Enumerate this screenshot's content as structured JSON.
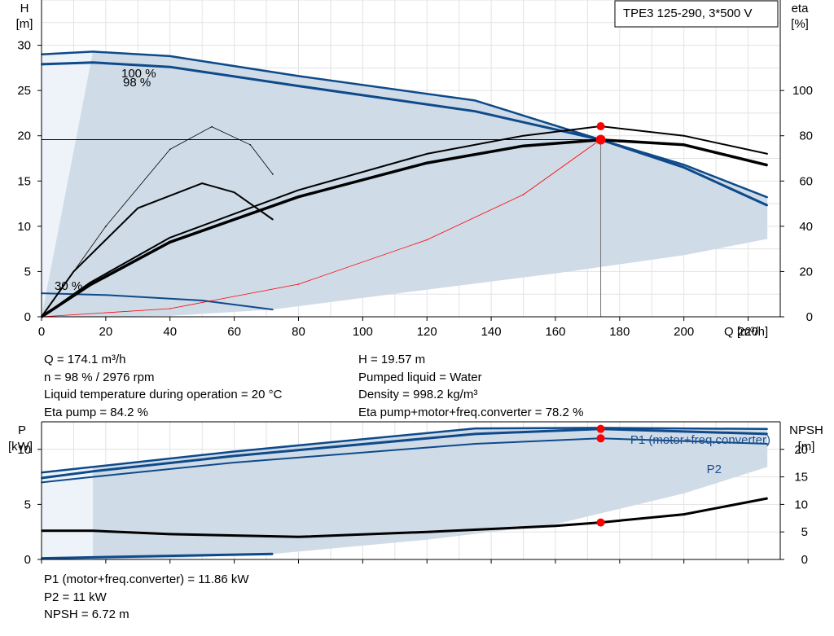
{
  "header": {
    "model_label": "TPE3 125-290, 3*500 V"
  },
  "operating_point": {
    "q": "Q = 174.1 m³/h",
    "n": "n = 98 % / 2976 rpm",
    "temp": "Liquid temperature during operation = 20 °C",
    "eta_pump": "Eta pump = 84.2 %",
    "h": "H = 19.57 m",
    "liquid": "Pumped liquid = Water",
    "density": "Density = 998.2 kg/m³",
    "eta_total": "Eta pump+motor+freq.converter = 78.2 %",
    "p1": "P1 (motor+freq.converter) = 11.86 kW",
    "p2": "P2 = 11 kW",
    "npsh": "NPSH = 6.72 m"
  },
  "chart_data": [
    {
      "type": "line",
      "xlabel": "Q [m³/h]",
      "ylabel": "H\n[m]",
      "y2label": "eta\n[%]",
      "xlim": [
        0,
        230
      ],
      "ylim": [
        0,
        35
      ],
      "y2lim": [
        0,
        140
      ],
      "xticks": [
        0,
        20,
        40,
        60,
        80,
        100,
        120,
        140,
        160,
        180,
        200,
        220
      ],
      "yticks": [
        0,
        5,
        10,
        15,
        20,
        25,
        30
      ],
      "y2ticks": [
        0,
        20,
        40,
        60,
        80,
        100
      ],
      "grid": true,
      "annotations": [
        "100 %",
        "98 %",
        "30 %"
      ],
      "operating_point": {
        "x": 174.1,
        "y": 19.57,
        "eta": 84.2
      },
      "series": [
        {
          "axis": "left",
          "color": "#0e4a8a",
          "x": [
            0,
            16,
            40,
            80,
            135,
            174,
            200,
            226
          ],
          "values": [
            29,
            29.3,
            28.8,
            26.6,
            23.9,
            19.57,
            16.8,
            13.2
          ]
        },
        {
          "axis": "left",
          "color": "#0e4a8a",
          "x": [
            0,
            16,
            40,
            80,
            135,
            174,
            200,
            226
          ],
          "values": [
            27.9,
            28.1,
            27.6,
            25.5,
            22.7,
            19.57,
            16.5,
            12.3
          ]
        },
        {
          "axis": "left",
          "color": "#0e4a8a",
          "x": [
            0,
            20,
            50,
            72
          ],
          "values": [
            2.6,
            2.4,
            1.8,
            0.8
          ]
        },
        {
          "axis": "right",
          "color": "#000000",
          "x": [
            0,
            15,
            40,
            80,
            120,
            150,
            174,
            200,
            226
          ],
          "values": [
            0,
            15,
            35,
            56,
            72,
            80,
            84.2,
            80,
            72
          ]
        },
        {
          "axis": "right",
          "color": "#000000",
          "x": [
            0,
            15,
            40,
            80,
            120,
            150,
            174,
            200,
            226
          ],
          "values": [
            0,
            14,
            33,
            53,
            68,
            75.5,
            78.2,
            76,
            67
          ]
        },
        {
          "axis": "right",
          "color": "#000000",
          "x": [
            0,
            10,
            30,
            50,
            60,
            72
          ],
          "values": [
            0,
            20,
            48,
            59,
            55,
            43
          ]
        },
        {
          "axis": "right",
          "color": "#000000",
          "x": [
            0,
            20,
            40,
            53,
            65,
            72
          ],
          "values": [
            0,
            40,
            74,
            84,
            76,
            63
          ]
        },
        {
          "axis": "left",
          "color": "#ff0000",
          "x": [
            0,
            40,
            80,
            120,
            150,
            174
          ],
          "values": [
            0,
            0.9,
            3.6,
            8.5,
            13.5,
            19.57
          ]
        }
      ]
    },
    {
      "type": "line",
      "ylabel": "P\n[kW]",
      "y2label": "NPSH\n[m]",
      "xlim": [
        0,
        230
      ],
      "ylim": [
        0,
        12.5
      ],
      "y2lim": [
        0,
        25
      ],
      "yticks": [
        0,
        5,
        10
      ],
      "y2ticks": [
        0,
        5,
        10,
        15,
        20
      ],
      "grid": true,
      "legend": [
        "P1 (motor+freq.converter)",
        "P2"
      ],
      "series": [
        {
          "axis": "left",
          "color": "#0e4a8a",
          "x": [
            0,
            16,
            60,
            135,
            174,
            226
          ],
          "values": [
            7.9,
            8.4,
            9.8,
            11.9,
            11.95,
            11.85
          ]
        },
        {
          "axis": "left",
          "color": "#0e4a8a",
          "x": [
            0,
            16,
            60,
            135,
            174,
            226
          ],
          "values": [
            7.4,
            8.0,
            9.4,
            11.4,
            11.86,
            11.4
          ]
        },
        {
          "axis": "left",
          "color": "#0e4a8a",
          "x": [
            0,
            16,
            60,
            135,
            174,
            226
          ],
          "values": [
            7.0,
            7.5,
            8.8,
            10.5,
            11.0,
            10.5
          ]
        },
        {
          "axis": "left",
          "color": "#0e4a8a",
          "x": [
            0,
            72
          ],
          "values": [
            0.1,
            0.5
          ]
        },
        {
          "axis": "right",
          "color": "#000000",
          "x": [
            0,
            16,
            40,
            80,
            120,
            160,
            174,
            200,
            226
          ],
          "values": [
            5.2,
            5.2,
            4.6,
            4.1,
            5.0,
            6.1,
            6.72,
            8.2,
            11.1
          ]
        }
      ]
    }
  ]
}
